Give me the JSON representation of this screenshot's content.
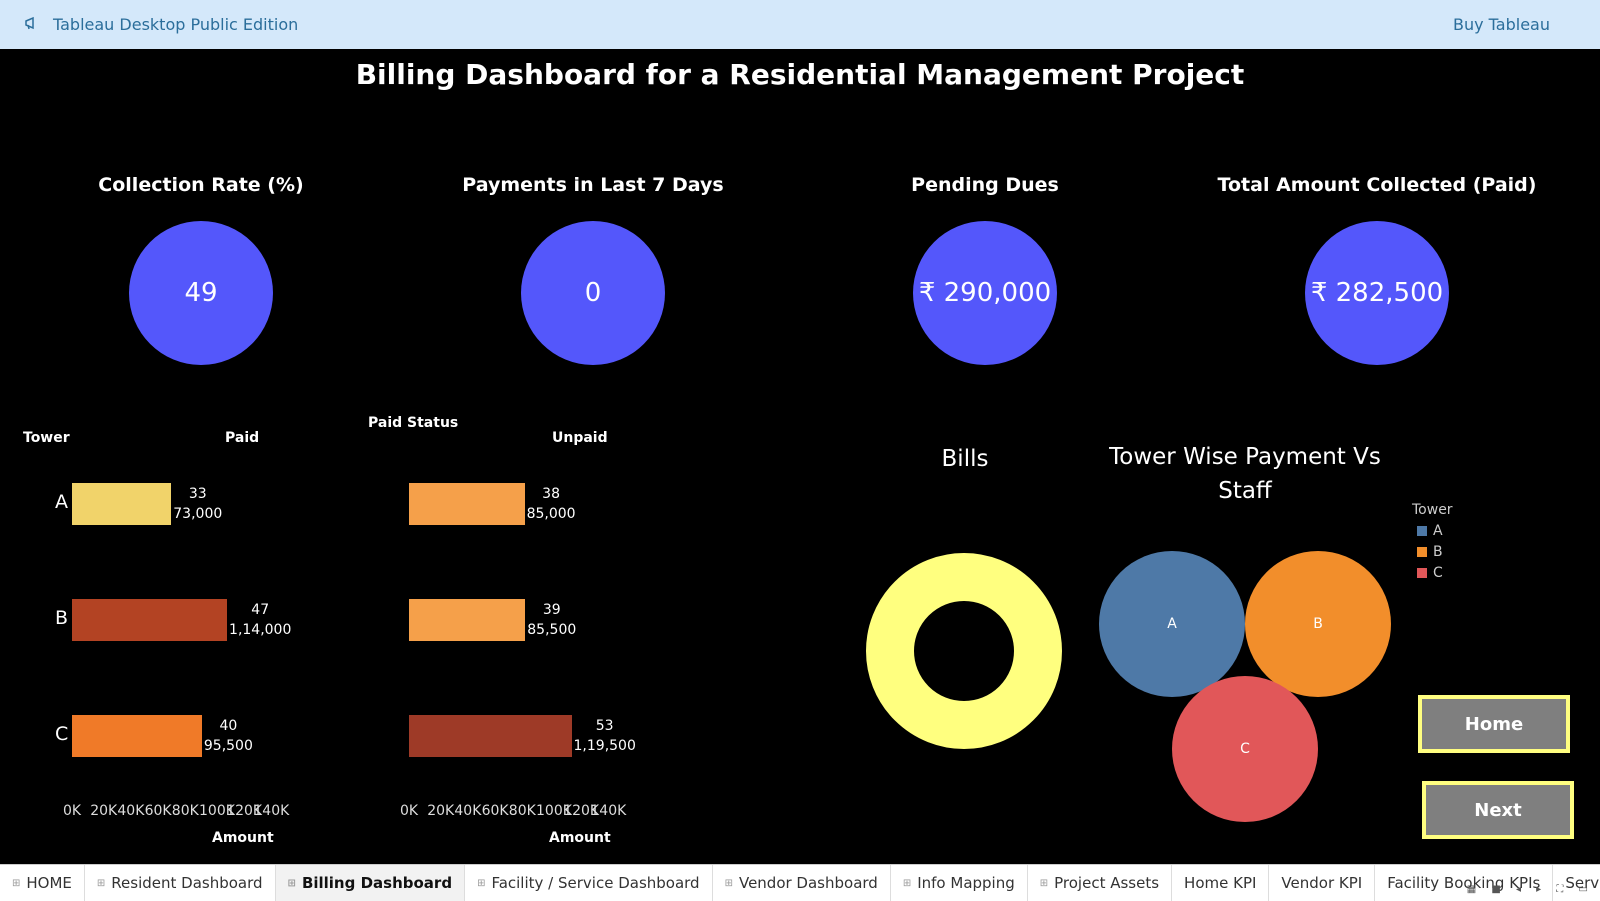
{
  "app": {
    "title": "Tableau Desktop Public Edition",
    "buy_label": "Buy Tableau"
  },
  "dashboard": {
    "title": "Billing Dashboard for a Residential Management Project"
  },
  "kpis": [
    {
      "title": "Collection Rate (%)",
      "value": "49"
    },
    {
      "title": "Payments in Last 7 Days",
      "value": "0"
    },
    {
      "title": "Pending Dues",
      "value": "₹ 290,000"
    },
    {
      "title": "Total Amount Collected (Paid)",
      "value": "₹ 282,500"
    }
  ],
  "bar_panel": {
    "row_header": "Tower",
    "column_group_header": "Paid Status",
    "paid_header": "Paid",
    "unpaid_header": "Unpaid",
    "x_axis_label": "Amount"
  },
  "chart_data": [
    {
      "type": "bar",
      "orientation": "horizontal",
      "title": "",
      "categories": [
        "A",
        "B",
        "C"
      ],
      "series": [
        {
          "name": "Paid",
          "values": [
            73000,
            114000,
            95500
          ],
          "counts": [
            "33",
            "47",
            "40"
          ],
          "value_labels": [
            "73,000",
            "1,14,000",
            "95,500"
          ],
          "colors": [
            "#f1d36a",
            "#b34323",
            "#f07a28"
          ]
        },
        {
          "name": "Unpaid",
          "values": [
            85000,
            85500,
            119500
          ],
          "counts": [
            "38",
            "39",
            "53"
          ],
          "value_labels": [
            "85,000",
            "85,500",
            "1,19,500"
          ],
          "colors": [
            "#f5a04a",
            "#f5a04a",
            "#9e3a27"
          ]
        }
      ],
      "xlabel": "Amount",
      "ylabel": "Tower",
      "xlim": [
        0,
        140000
      ],
      "x_ticks": [
        "0K",
        "20K",
        "40K",
        "60K",
        "80K",
        "100K",
        "120K",
        "140K"
      ]
    },
    {
      "type": "pie",
      "title": "Bills",
      "style": "donut",
      "slices": [
        {
          "label": "",
          "value": 1,
          "color": "#ffff7f"
        }
      ]
    },
    {
      "type": "scatter",
      "style": "packed-bubbles",
      "title": "Tower Wise Payment Vs Staff",
      "legend_title": "Tower",
      "legend_position": "right",
      "series": [
        {
          "name": "A",
          "color": "#4e79a7"
        },
        {
          "name": "B",
          "color": "#f28e2b"
        },
        {
          "name": "C",
          "color": "#e15759"
        }
      ]
    }
  ],
  "buttons": {
    "home": "Home",
    "next": "Next"
  },
  "tabs": [
    {
      "label": "HOME",
      "active": false,
      "grid": true
    },
    {
      "label": "Resident Dashboard",
      "active": false,
      "grid": true
    },
    {
      "label": "Billing Dashboard",
      "active": true,
      "grid": true
    },
    {
      "label": "Facility / Service Dashboard",
      "active": false,
      "grid": true
    },
    {
      "label": "Vendor Dashboard",
      "active": false,
      "grid": true
    },
    {
      "label": "Info Mapping",
      "active": false,
      "grid": true
    },
    {
      "label": "Project Assets",
      "active": false,
      "grid": true
    },
    {
      "label": "Home KPI",
      "active": false,
      "grid": false
    },
    {
      "label": "Vendor KPI",
      "active": false,
      "grid": false
    },
    {
      "label": "Facility Booking KPIs",
      "active": false,
      "grid": false
    },
    {
      "label": "Servic",
      "active": false,
      "grid": false
    }
  ]
}
